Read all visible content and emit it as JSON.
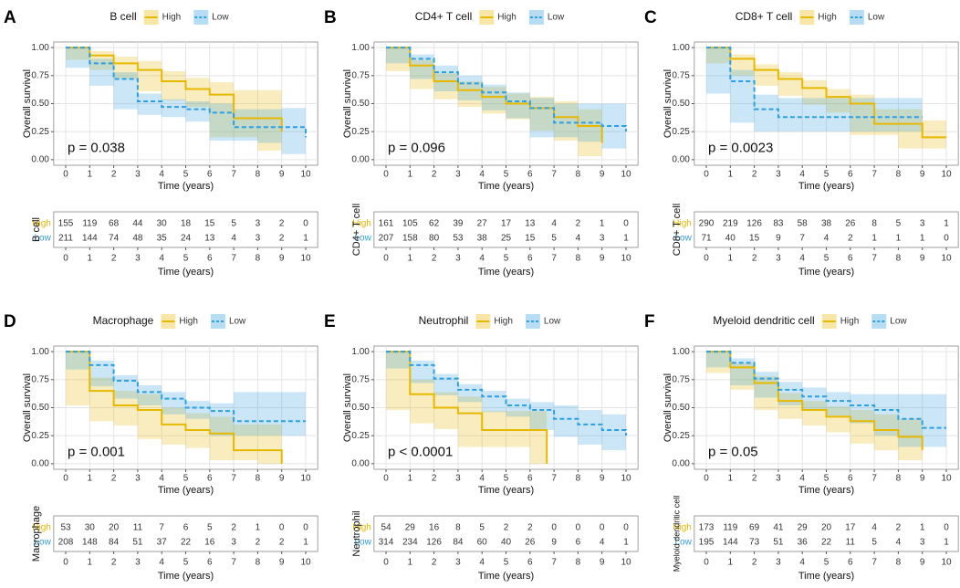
{
  "chart_data": [
    {
      "type": "line",
      "panel": "A",
      "title": "B cell",
      "ylabel": "Overall survival",
      "xlabel": "Time (years)",
      "annotation": "p = 0.038",
      "xlim": [
        -0.5,
        10.5
      ],
      "xticks": [
        0,
        1,
        2,
        3,
        4,
        5,
        6,
        7,
        8,
        9,
        10
      ],
      "ylim": [
        -0.05,
        1.05
      ],
      "yticks": [
        {
          "value": 0,
          "label": "0.00"
        },
        {
          "value": 0.25,
          "label": "0.25"
        },
        {
          "value": 0.5,
          "label": "0.50"
        },
        {
          "value": 0.75,
          "label": "0.75"
        },
        {
          "value": 1,
          "label": "1.00"
        }
      ],
      "grid": true,
      "step": true,
      "series": [
        {
          "name": "High",
          "color": "#e7b800",
          "x": [
            0,
            1,
            2,
            3,
            4,
            5,
            6,
            7,
            8,
            9
          ],
          "values": [
            1,
            0.93,
            0.86,
            0.8,
            0.7,
            0.63,
            0.58,
            0.37,
            0.37,
            0.25
          ],
          "ci_lower": [
            1,
            0.89,
            0.8,
            0.72,
            0.61,
            0.53,
            0.47,
            0.2,
            0.2,
            0.08
          ],
          "ci_upper": [
            1,
            0.97,
            0.92,
            0.88,
            0.79,
            0.73,
            0.69,
            0.62,
            0.62,
            0.6
          ],
          "at_risk": [
            155,
            119,
            68,
            44,
            30,
            18,
            15,
            5,
            3,
            2,
            0
          ]
        },
        {
          "name": "Low",
          "color": "#2e9fdf",
          "x": [
            0,
            1,
            2,
            3,
            4,
            5,
            6,
            7,
            8,
            9,
            10
          ],
          "values": [
            1,
            0.86,
            0.72,
            0.52,
            0.47,
            0.45,
            0.42,
            0.29,
            0.29,
            0.29,
            0.2
          ],
          "ci_lower": [
            1,
            0.82,
            0.66,
            0.45,
            0.4,
            0.38,
            0.34,
            0.17,
            0.17,
            0.15,
            0.05
          ],
          "ci_upper": [
            1,
            0.9,
            0.78,
            0.59,
            0.54,
            0.52,
            0.5,
            0.45,
            0.45,
            0.46,
            0.48
          ],
          "at_risk": [
            211,
            144,
            74,
            48,
            35,
            24,
            13,
            4,
            3,
            2,
            1
          ]
        }
      ]
    },
    {
      "type": "line",
      "panel": "B",
      "title": "CD4+ T cell",
      "ylabel": "Overall survival",
      "xlabel": "Time (years)",
      "annotation": "p = 0.096",
      "xlim": [
        -0.5,
        10.5
      ],
      "xticks": [
        0,
        1,
        2,
        3,
        4,
        5,
        6,
        7,
        8,
        9,
        10
      ],
      "ylim": [
        -0.05,
        1.05
      ],
      "yticks": [
        {
          "value": 0,
          "label": "0.00"
        },
        {
          "value": 0.25,
          "label": "0.25"
        },
        {
          "value": 0.5,
          "label": "0.50"
        },
        {
          "value": 0.75,
          "label": "0.75"
        },
        {
          "value": 1,
          "label": "1.00"
        }
      ],
      "grid": true,
      "step": true,
      "series": [
        {
          "name": "High",
          "color": "#e7b800",
          "x": [
            0,
            1,
            2,
            3,
            4,
            5,
            6,
            7,
            8,
            9
          ],
          "values": [
            1,
            0.84,
            0.7,
            0.62,
            0.56,
            0.5,
            0.46,
            0.38,
            0.3,
            0.15
          ],
          "ci_lower": [
            1,
            0.79,
            0.63,
            0.54,
            0.47,
            0.41,
            0.36,
            0.26,
            0.17,
            0.03
          ],
          "ci_upper": [
            1,
            0.89,
            0.77,
            0.7,
            0.65,
            0.59,
            0.56,
            0.52,
            0.45,
            0.63
          ],
          "at_risk": [
            161,
            105,
            62,
            39,
            27,
            17,
            13,
            4,
            2,
            1,
            0
          ]
        },
        {
          "name": "Low",
          "color": "#2e9fdf",
          "x": [
            0,
            1,
            2,
            3,
            4,
            5,
            6,
            7,
            8,
            9,
            10
          ],
          "values": [
            1,
            0.9,
            0.78,
            0.68,
            0.6,
            0.52,
            0.46,
            0.33,
            0.33,
            0.3,
            0.25
          ],
          "ci_lower": [
            1,
            0.86,
            0.72,
            0.61,
            0.53,
            0.44,
            0.37,
            0.2,
            0.2,
            0.16,
            0.1
          ],
          "ci_upper": [
            1,
            0.94,
            0.84,
            0.75,
            0.67,
            0.6,
            0.55,
            0.5,
            0.5,
            0.5,
            0.5
          ],
          "at_risk": [
            207,
            158,
            80,
            53,
            38,
            25,
            15,
            5,
            4,
            3,
            1
          ]
        }
      ]
    },
    {
      "type": "line",
      "panel": "C",
      "title": "CD8+ T cell",
      "ylabel": "Overall survival",
      "xlabel": "Time (years)",
      "annotation": "p = 0.0023",
      "xlim": [
        -0.5,
        10.5
      ],
      "xticks": [
        0,
        1,
        2,
        3,
        4,
        5,
        6,
        7,
        8,
        9,
        10
      ],
      "ylim": [
        -0.05,
        1.05
      ],
      "yticks": [
        {
          "value": 0,
          "label": "0.00"
        },
        {
          "value": 0.25,
          "label": "0.25"
        },
        {
          "value": 0.5,
          "label": "0.50"
        },
        {
          "value": 0.75,
          "label": "0.75"
        },
        {
          "value": 1,
          "label": "1.00"
        }
      ],
      "grid": true,
      "step": true,
      "series": [
        {
          "name": "High",
          "color": "#e7b800",
          "x": [
            0,
            1,
            2,
            3,
            4,
            5,
            6,
            7,
            8,
            9,
            10
          ],
          "values": [
            1,
            0.9,
            0.8,
            0.72,
            0.64,
            0.56,
            0.5,
            0.32,
            0.32,
            0.2,
            0.2
          ],
          "ci_lower": [
            1,
            0.86,
            0.75,
            0.66,
            0.57,
            0.49,
            0.42,
            0.22,
            0.22,
            0.1,
            0.1
          ],
          "ci_upper": [
            1,
            0.94,
            0.85,
            0.78,
            0.71,
            0.63,
            0.58,
            0.45,
            0.45,
            0.35,
            0.35
          ],
          "at_risk": [
            290,
            219,
            126,
            83,
            58,
            38,
            26,
            8,
            5,
            3,
            1
          ]
        },
        {
          "name": "Low",
          "color": "#2e9fdf",
          "x": [
            0,
            1,
            2,
            3,
            4,
            5,
            6,
            7,
            8,
            9
          ],
          "values": [
            1,
            0.7,
            0.45,
            0.38,
            0.38,
            0.38,
            0.38,
            0.38,
            0.38,
            0.38
          ],
          "ci_lower": [
            1,
            0.59,
            0.33,
            0.25,
            0.25,
            0.25,
            0.25,
            0.25,
            0.25,
            0.25
          ],
          "ci_upper": [
            1,
            0.8,
            0.58,
            0.55,
            0.55,
            0.55,
            0.55,
            0.55,
            0.55,
            0.55
          ],
          "at_risk": [
            71,
            40,
            15,
            9,
            7,
            4,
            2,
            1,
            1,
            1,
            0
          ]
        }
      ]
    },
    {
      "type": "line",
      "panel": "D",
      "title": "Macrophage",
      "ylabel": "Overall survival",
      "xlabel": "Time (years)",
      "annotation": "p = 0.001",
      "xlim": [
        -0.5,
        10.5
      ],
      "xticks": [
        0,
        1,
        2,
        3,
        4,
        5,
        6,
        7,
        8,
        9,
        10
      ],
      "ylim": [
        -0.05,
        1.05
      ],
      "yticks": [
        {
          "value": 0,
          "label": "0.00"
        },
        {
          "value": 0.25,
          "label": "0.25"
        },
        {
          "value": 0.5,
          "label": "0.50"
        },
        {
          "value": 0.75,
          "label": "0.75"
        },
        {
          "value": 1,
          "label": "1.00"
        }
      ],
      "grid": true,
      "step": true,
      "series": [
        {
          "name": "High",
          "color": "#e7b800",
          "x": [
            0,
            1,
            2,
            3,
            4,
            5,
            6,
            7,
            8,
            9
          ],
          "values": [
            1,
            0.65,
            0.52,
            0.48,
            0.35,
            0.3,
            0.27,
            0.12,
            0.12,
            0
          ],
          "ci_lower": [
            1,
            0.52,
            0.38,
            0.34,
            0.22,
            0.17,
            0.14,
            0.03,
            0.03,
            0
          ],
          "ci_upper": [
            1,
            0.77,
            0.65,
            0.62,
            0.5,
            0.45,
            0.42,
            0.35,
            0.35,
            0.35
          ],
          "at_risk": [
            53,
            30,
            20,
            11,
            7,
            6,
            5,
            2,
            1,
            0,
            0
          ]
        },
        {
          "name": "Low",
          "color": "#2e9fdf",
          "x": [
            0,
            1,
            2,
            3,
            4,
            5,
            6,
            7,
            8,
            9,
            10
          ],
          "values": [
            1,
            0.88,
            0.74,
            0.64,
            0.58,
            0.5,
            0.47,
            0.38,
            0.38,
            0.38,
            0.38
          ],
          "ci_lower": [
            1,
            0.84,
            0.69,
            0.58,
            0.52,
            0.44,
            0.4,
            0.25,
            0.25,
            0.25,
            0.25
          ],
          "ci_upper": [
            1,
            0.92,
            0.79,
            0.7,
            0.64,
            0.56,
            0.54,
            0.64,
            0.64,
            0.64,
            0.64
          ],
          "at_risk": [
            208,
            148,
            84,
            51,
            37,
            22,
            16,
            3,
            2,
            2,
            1
          ]
        }
      ]
    },
    {
      "type": "line",
      "panel": "E",
      "title": "Neutrophil",
      "ylabel": "Overall survival",
      "xlabel": "Time (years)",
      "annotation": "p < 0.0001",
      "xlim": [
        -0.5,
        10.5
      ],
      "xticks": [
        0,
        1,
        2,
        3,
        4,
        5,
        6,
        7,
        8,
        9,
        10
      ],
      "ylim": [
        -0.05,
        1.05
      ],
      "yticks": [
        {
          "value": 0,
          "label": "0.00"
        },
        {
          "value": 0.25,
          "label": "0.25"
        },
        {
          "value": 0.5,
          "label": "0.50"
        },
        {
          "value": 0.75,
          "label": "0.75"
        },
        {
          "value": 1,
          "label": "1.00"
        }
      ],
      "grid": true,
      "step": true,
      "series": [
        {
          "name": "High",
          "color": "#e7b800",
          "x": [
            0,
            1,
            2,
            3,
            4,
            5,
            6,
            6.7
          ],
          "values": [
            1,
            0.62,
            0.5,
            0.45,
            0.3,
            0.3,
            0.3,
            0
          ],
          "ci_lower": [
            1,
            0.48,
            0.36,
            0.31,
            0.15,
            0.15,
            0.15,
            0
          ],
          "ci_upper": [
            1,
            0.75,
            0.64,
            0.6,
            0.47,
            0.47,
            0.47,
            0.47
          ],
          "at_risk": [
            54,
            29,
            16,
            8,
            5,
            2,
            2,
            0,
            0,
            0,
            0
          ]
        },
        {
          "name": "Low",
          "color": "#2e9fdf",
          "x": [
            0,
            1,
            2,
            3,
            4,
            5,
            6,
            7,
            8,
            9,
            10
          ],
          "values": [
            1,
            0.88,
            0.76,
            0.66,
            0.6,
            0.52,
            0.48,
            0.4,
            0.35,
            0.3,
            0.25
          ],
          "ci_lower": [
            1,
            0.85,
            0.72,
            0.61,
            0.55,
            0.46,
            0.42,
            0.3,
            0.24,
            0.17,
            0.12
          ],
          "ci_upper": [
            1,
            0.92,
            0.8,
            0.71,
            0.65,
            0.58,
            0.55,
            0.52,
            0.48,
            0.44,
            0.4
          ],
          "at_risk": [
            314,
            234,
            126,
            84,
            60,
            40,
            26,
            9,
            6,
            4,
            1
          ]
        }
      ]
    },
    {
      "type": "line",
      "panel": "F",
      "title": "Myeloid dendritic cell",
      "ylabel": "Overall survival",
      "xlabel": "Time (years)",
      "annotation": "p = 0.05",
      "xlim": [
        -0.5,
        10.5
      ],
      "xticks": [
        0,
        1,
        2,
        3,
        4,
        5,
        6,
        7,
        8,
        9,
        10
      ],
      "ylim": [
        -0.05,
        1.05
      ],
      "yticks": [
        {
          "value": 0,
          "label": "0.00"
        },
        {
          "value": 0.25,
          "label": "0.25"
        },
        {
          "value": 0.5,
          "label": "0.50"
        },
        {
          "value": 0.75,
          "label": "0.75"
        },
        {
          "value": 1,
          "label": "1.00"
        }
      ],
      "grid": true,
      "step": true,
      "series": [
        {
          "name": "High",
          "color": "#e7b800",
          "x": [
            0,
            1,
            2,
            3,
            4,
            5,
            6,
            7,
            8,
            9
          ],
          "values": [
            1,
            0.86,
            0.72,
            0.56,
            0.48,
            0.42,
            0.38,
            0.3,
            0.24,
            0.12
          ],
          "ci_lower": [
            1,
            0.81,
            0.66,
            0.48,
            0.4,
            0.34,
            0.28,
            0.18,
            0.12,
            0.03
          ],
          "ci_upper": [
            1,
            0.9,
            0.78,
            0.63,
            0.56,
            0.51,
            0.48,
            0.44,
            0.4,
            0.55
          ],
          "at_risk": [
            173,
            119,
            69,
            41,
            29,
            20,
            17,
            4,
            2,
            1,
            0
          ]
        },
        {
          "name": "Low",
          "color": "#2e9fdf",
          "x": [
            0,
            1,
            2,
            3,
            4,
            5,
            6,
            7,
            8,
            9,
            10
          ],
          "values": [
            1,
            0.9,
            0.76,
            0.66,
            0.6,
            0.56,
            0.52,
            0.48,
            0.4,
            0.32,
            0.32
          ],
          "ci_lower": [
            1,
            0.86,
            0.7,
            0.59,
            0.52,
            0.48,
            0.43,
            0.36,
            0.25,
            0.15,
            0.15
          ],
          "ci_upper": [
            1,
            0.94,
            0.82,
            0.73,
            0.68,
            0.64,
            0.62,
            0.62,
            0.62,
            0.62,
            0.62
          ],
          "at_risk": [
            195,
            144,
            73,
            51,
            36,
            22,
            11,
            5,
            4,
            3,
            1
          ]
        }
      ]
    }
  ]
}
